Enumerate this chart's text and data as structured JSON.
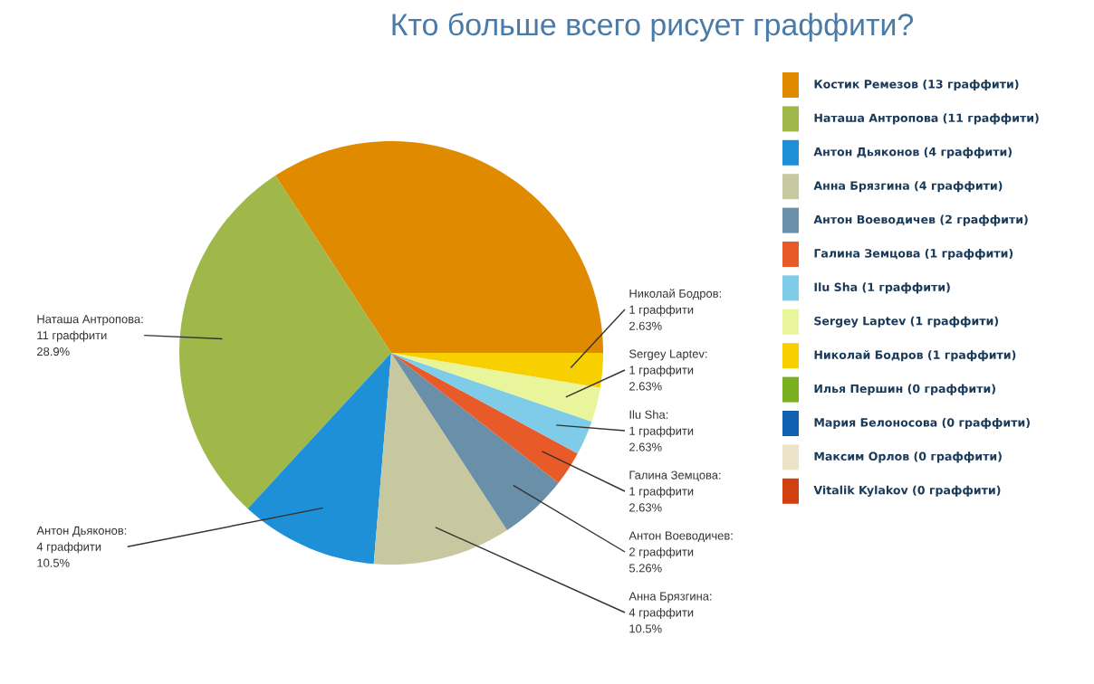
{
  "chart_data": {
    "type": "pie",
    "title": "Кто больше всего рисует граффити?",
    "categories": [
      "Костик Ремезов (13 граффити)",
      "Наташа Антропова (11 граффити)",
      "Антон Дьяконов (4 граффити)",
      "Анна Брязгина (4 граффити)",
      "Антон Воеводичев (2 граффити)",
      "Галина Земцова (1 граффити)",
      "Ilu Sha (1 граффити)",
      "Sergey Laptev (1 граффити)",
      "Николай Бодров (1 граффити)",
      "Илья Першин (0 граффити)",
      "Мария Белоносова (0 граффити)",
      "Максим Орлов (0 граффити)",
      "Vitalik Kylakov (0 граффити)"
    ],
    "values": [
      13,
      11,
      4,
      4,
      2,
      1,
      1,
      1,
      1,
      0,
      0,
      0,
      0
    ],
    "colors": [
      "#e08a00",
      "#a0b84a",
      "#1e90d8",
      "#c8c8a0",
      "#6a8fa8",
      "#e85a28",
      "#7ecce8",
      "#e8f59a",
      "#f8d000",
      "#78b020",
      "#1060b0",
      "#ece4c8",
      "#d04010"
    ],
    "value_labels": [
      null,
      [
        "Наташа Антропова:",
        "11 граффити",
        "28.9%"
      ],
      [
        "Антон Дьяконов:",
        "4 граффити",
        "10.5%"
      ],
      [
        "Анна Брязгина:",
        "4 граффити",
        "10.5%"
      ],
      [
        "Антон Воеводичев:",
        "2 граффити",
        "5.26%"
      ],
      [
        "Галина Земцова:",
        "1 граффити",
        "2.63%"
      ],
      [
        "Ilu Sha:",
        "1 граффити",
        "2.63%"
      ],
      [
        "Sergey Laptev:",
        "1 граффити",
        "2.63%"
      ],
      [
        "Николай Бодров:",
        "1 граффити",
        "2.63%"
      ],
      null,
      null,
      null,
      null
    ],
    "legend": "right"
  }
}
